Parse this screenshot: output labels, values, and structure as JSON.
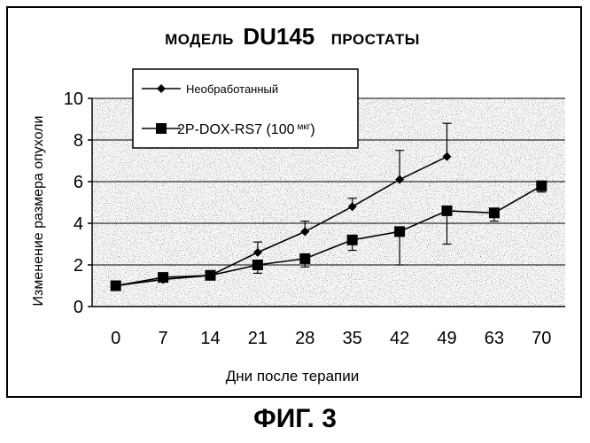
{
  "chart_data": {
    "type": "line",
    "title_prefix": "МОДЕЛЬ",
    "title_model": "DU145",
    "title_suffix": "ПРОСТАТЫ",
    "xlabel": "Дни после терапии",
    "ylabel": "Изменение размера опухоли",
    "categories": [
      "0",
      "7",
      "14",
      "21",
      "28",
      "35",
      "42",
      "49",
      "63",
      "70"
    ],
    "ylim": [
      0,
      10
    ],
    "yticks": [
      0,
      2,
      4,
      6,
      8,
      10
    ],
    "grid": true,
    "legend_position": "top-left",
    "series": [
      {
        "name": "Необработанный",
        "marker": "diamond",
        "values": [
          1.0,
          1.3,
          1.5,
          2.6,
          3.6,
          4.8,
          6.1,
          7.2,
          null,
          null
        ],
        "error_up": [
          0,
          0,
          0,
          0.5,
          0.5,
          0.4,
          1.4,
          1.6,
          null,
          null
        ],
        "error_down": [
          0,
          0,
          0,
          0,
          0,
          0,
          0,
          0,
          null,
          null
        ]
      },
      {
        "name_main": "2P-DOX-RS7 (100",
        "name_unit": "мкг",
        "name_close": ")",
        "marker": "square",
        "values": [
          1.0,
          1.4,
          1.5,
          2.0,
          2.3,
          3.2,
          3.6,
          4.6,
          4.5,
          5.8
        ],
        "error_up": [
          0,
          0,
          0,
          0.2,
          0.2,
          0,
          0,
          0,
          0,
          0.1
        ],
        "error_down": [
          0,
          0,
          0,
          0.4,
          0.4,
          0.5,
          1.6,
          1.6,
          0.4,
          0.3
        ]
      }
    ]
  },
  "figure_caption": "ФИГ. 3"
}
